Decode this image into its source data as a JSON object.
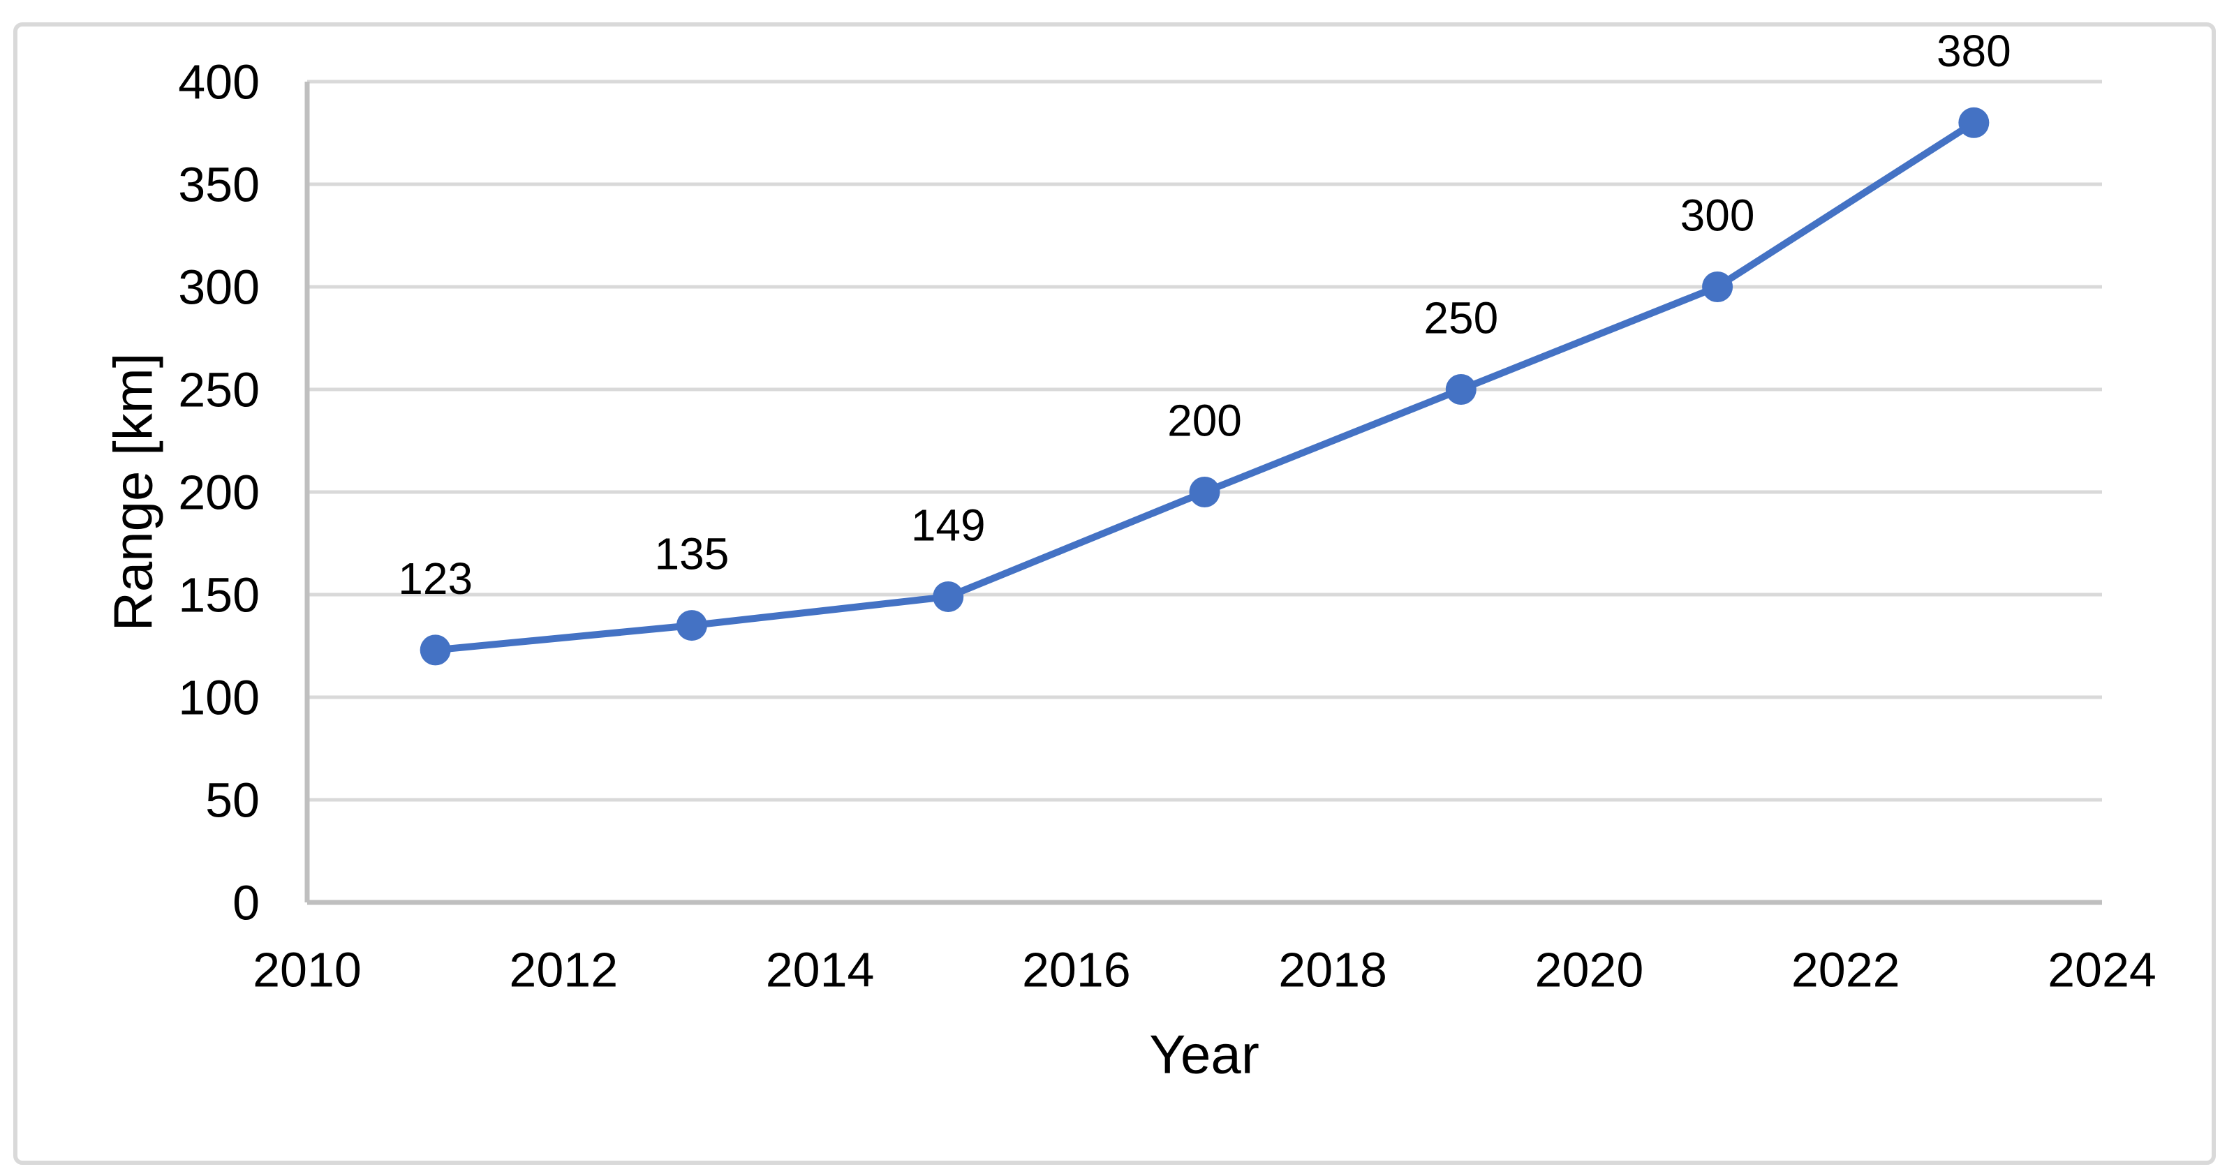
{
  "chart_data": {
    "type": "line",
    "title": "",
    "xlabel": "Year",
    "ylabel": "Range [km]",
    "x": [
      2011,
      2013,
      2015,
      2017,
      2019,
      2021,
      2023
    ],
    "values": [
      123,
      135,
      149,
      200,
      250,
      300,
      380
    ],
    "data_labels": [
      "123",
      "135",
      "149",
      "200",
      "250",
      "300",
      "380"
    ],
    "x_ticks": [
      2010,
      2012,
      2014,
      2016,
      2018,
      2020,
      2022,
      2024
    ],
    "y_ticks": [
      0,
      50,
      100,
      150,
      200,
      250,
      300,
      350,
      400
    ],
    "xlim": [
      2010,
      2024
    ],
    "ylim": [
      0,
      400
    ],
    "grid": "horizontal",
    "legend": "none",
    "marker": "circle",
    "colors": {
      "line": "#4472C4",
      "marker": "#4472C4",
      "gridline": "#D9D9D9",
      "axis_line": "#BFBFBF",
      "frame_border": "#D9D9D9",
      "text": "#000000",
      "background": "#FFFFFF"
    }
  }
}
